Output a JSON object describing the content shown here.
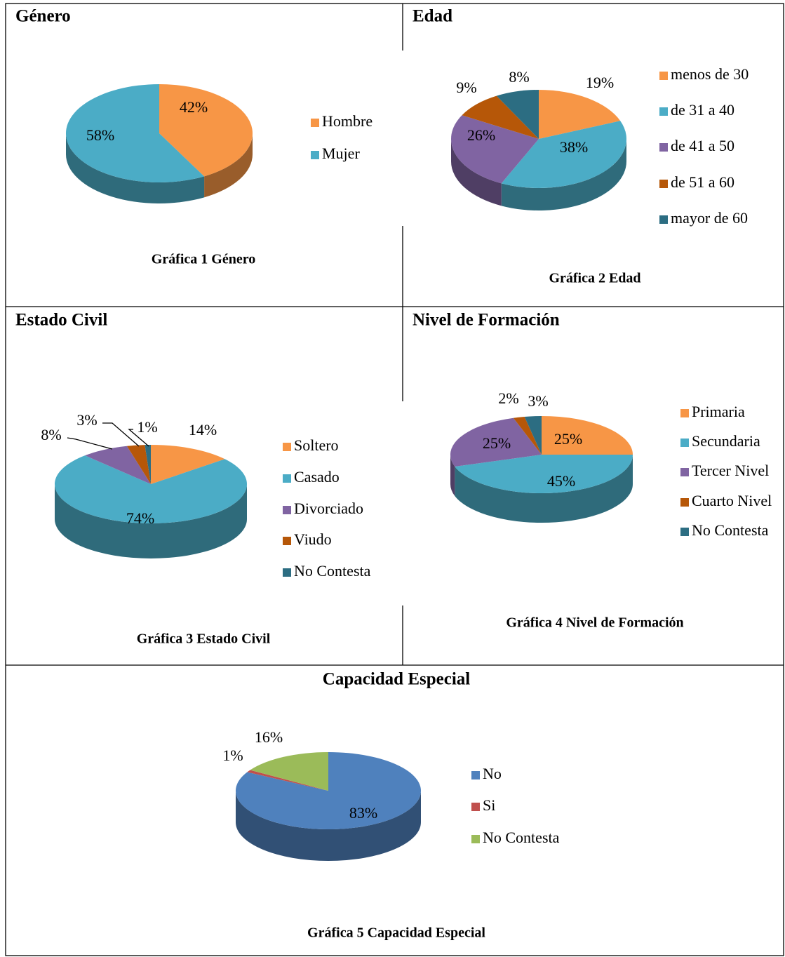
{
  "chart_data": [
    {
      "type": "pie",
      "title": "Género",
      "caption": "Gráfica 1 Género",
      "categories": [
        "Hombre",
        "Mujer"
      ],
      "values": [
        42,
        58
      ],
      "value_labels": [
        "42%",
        "58%"
      ],
      "colors": [
        "#f79646",
        "#4bacc6"
      ]
    },
    {
      "type": "pie",
      "title": "Edad",
      "caption": "Gráfica 2 Edad",
      "categories": [
        "menos de 30",
        "de 31 a 40",
        "de 41 a 50",
        "de 51 a 60",
        "mayor de 60"
      ],
      "values": [
        19,
        38,
        26,
        9,
        8
      ],
      "value_labels": [
        "19%",
        "38%",
        "26%",
        "9%",
        "8%"
      ],
      "colors": [
        "#f79646",
        "#4bacc6",
        "#8064a2",
        "#b65708",
        "#2c6d82"
      ]
    },
    {
      "type": "pie",
      "title": "Estado Civil",
      "caption": "Gráfica 3 Estado Civil",
      "categories": [
        "Soltero",
        "Casado",
        "Divorciado",
        "Viudo",
        "No Contesta"
      ],
      "values": [
        14,
        74,
        8,
        3,
        1
      ],
      "value_labels": [
        "14%",
        "74%",
        "8%",
        "3%",
        "1%"
      ],
      "colors": [
        "#f79646",
        "#4bacc6",
        "#8064a2",
        "#b65708",
        "#2c6d82"
      ]
    },
    {
      "type": "pie",
      "title": "Nivel de Formación",
      "caption": "Gráfica 4 Nivel de Formación",
      "categories": [
        "Primaria",
        "Secundaria",
        "Tercer Nivel",
        "Cuarto Nivel",
        "No Contesta"
      ],
      "values": [
        25,
        45,
        25,
        2,
        3
      ],
      "value_labels": [
        "25%",
        "45%",
        "25%",
        "2%",
        "3%"
      ],
      "colors": [
        "#f79646",
        "#4bacc6",
        "#8064a2",
        "#b65708",
        "#2c6d82"
      ]
    },
    {
      "type": "pie",
      "title": "Capacidad Especial",
      "caption": "Gráfica 5 Capacidad Especial",
      "categories": [
        "No",
        "Si",
        "No Contesta"
      ],
      "values": [
        83,
        1,
        16
      ],
      "value_labels": [
        "83%",
        "1%",
        "16%"
      ],
      "colors": [
        "#4f81bd",
        "#c0504d",
        "#9bbb59"
      ]
    }
  ]
}
